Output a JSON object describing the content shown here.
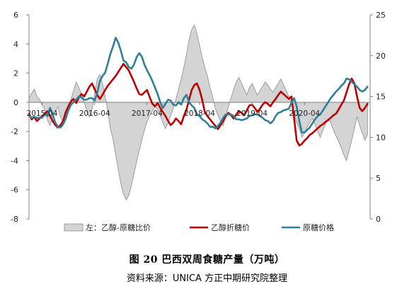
{
  "chart_data": {
    "type": "line",
    "title": "",
    "xlabel": "",
    "ylabel_left": "",
    "ylabel_right": "",
    "left_axis": {
      "min": -8,
      "max": 6,
      "step": 2,
      "ticks": [
        "-8",
        "-6",
        "-4",
        "-2",
        "0",
        "2",
        "4",
        "6"
      ]
    },
    "right_axis": {
      "min": 0,
      "max": 25,
      "step": 5,
      "ticks": [
        "0",
        "5",
        "10",
        "15",
        "20",
        "25"
      ]
    },
    "x_range": [
      2015.0,
      2021.5
    ],
    "x_ticks": [
      {
        "x": 2015.25,
        "label": "2015-04"
      },
      {
        "x": 2016.25,
        "label": "2016-04"
      },
      {
        "x": 2017.25,
        "label": "2017-04"
      },
      {
        "x": 2018.25,
        "label": "2018-04"
      },
      {
        "x": 2019.25,
        "label": "2019-04"
      },
      {
        "x": 2020.25,
        "label": "2020-04"
      }
    ],
    "legend": {
      "placement": "bottom",
      "entries": [
        "左：乙醇-原糖比价",
        "乙醇折糖价",
        "原糖价格"
      ]
    },
    "colors": {
      "area_fill": "#d4d4d4",
      "area_stroke": "#8c8c8c",
      "ethanol": "#c00000",
      "raw_sugar": "#2f7f99"
    },
    "series": [
      {
        "name": "左：乙醇-原糖比价",
        "axis": "left",
        "style": "area",
        "x": [
          2015.0,
          2015.05,
          2015.1,
          2015.15,
          2015.2,
          2015.25,
          2015.3,
          2015.35,
          2015.4,
          2015.45,
          2015.5,
          2015.55,
          2015.6,
          2015.65,
          2015.7,
          2015.75,
          2015.8,
          2015.85,
          2015.9,
          2015.95,
          2016.0,
          2016.05,
          2016.1,
          2016.15,
          2016.2,
          2016.25,
          2016.3,
          2016.35,
          2016.4,
          2016.45,
          2016.5,
          2016.55,
          2016.6,
          2016.65,
          2016.7,
          2016.75,
          2016.8,
          2016.85,
          2016.9,
          2016.95,
          2017.0,
          2017.05,
          2017.1,
          2017.15,
          2017.2,
          2017.25,
          2017.3,
          2017.35,
          2017.4,
          2017.45,
          2017.5,
          2017.55,
          2017.6,
          2017.65,
          2017.7,
          2017.75,
          2017.8,
          2017.85,
          2017.9,
          2017.95,
          2018.0,
          2018.05,
          2018.1,
          2018.15,
          2018.2,
          2018.25,
          2018.3,
          2018.35,
          2018.4,
          2018.45,
          2018.5,
          2018.55,
          2018.6,
          2018.65,
          2018.7,
          2018.75,
          2018.8,
          2018.85,
          2018.9,
          2018.95,
          2019.0,
          2019.05,
          2019.1,
          2019.15,
          2019.2,
          2019.25,
          2019.3,
          2019.35,
          2019.4,
          2019.45,
          2019.5,
          2019.55,
          2019.6,
          2019.65,
          2019.7,
          2019.75,
          2019.8,
          2019.85,
          2019.9,
          2019.95,
          2020.0,
          2020.05,
          2020.1,
          2020.15,
          2020.2,
          2020.25,
          2020.3,
          2020.35,
          2020.4,
          2020.45,
          2020.5,
          2020.55,
          2020.6,
          2020.65,
          2020.7,
          2020.75,
          2020.8,
          2020.85,
          2020.9,
          2020.95,
          2021.0,
          2021.05,
          2021.1,
          2021.15,
          2021.2,
          2021.25,
          2021.3,
          2021.35,
          2021.4,
          2021.45
        ],
        "y": [
          0.3,
          0.6,
          0.9,
          0.4,
          0.2,
          -0.2,
          -0.5,
          -1.2,
          -1.6,
          -1.0,
          -0.6,
          -0.3,
          -1.0,
          -1.4,
          -0.8,
          -0.4,
          0.2,
          0.8,
          1.4,
          1.0,
          0.6,
          0.0,
          -0.6,
          -1.0,
          -0.5,
          0.6,
          1.6,
          1.9,
          1.3,
          0.4,
          -0.6,
          -1.8,
          -2.5,
          -3.6,
          -4.6,
          -5.6,
          -6.3,
          -6.7,
          -6.4,
          -5.7,
          -4.9,
          -4.1,
          -3.3,
          -2.6,
          -1.9,
          -1.3,
          -0.9,
          -0.6,
          -0.3,
          -0.5,
          -0.9,
          -1.4,
          -1.8,
          -1.4,
          -0.9,
          -0.4,
          0.2,
          0.9,
          1.6,
          2.4,
          3.3,
          4.3,
          5.0,
          5.3,
          4.7,
          3.9,
          3.1,
          2.4,
          1.8,
          1.0,
          0.4,
          -0.4,
          -0.9,
          -1.3,
          -1.6,
          -0.9,
          -0.3,
          0.3,
          0.9,
          1.4,
          1.7,
          1.3,
          0.9,
          0.5,
          1.0,
          1.3,
          0.9,
          0.5,
          0.8,
          1.1,
          1.4,
          1.2,
          0.9,
          0.7,
          1.0,
          1.3,
          1.6,
          1.2,
          0.8,
          0.4,
          0.0,
          -0.7,
          -1.4,
          -1.8,
          -2.4,
          -2.1,
          -1.7,
          -1.4,
          -1.1,
          -1.5,
          -2.0,
          -2.4,
          -1.9,
          -1.5,
          -1.1,
          -1.4,
          -1.9,
          -2.3,
          -2.7,
          -3.1,
          -3.6,
          -4.0,
          -3.3,
          -2.6,
          -1.8,
          -1.0,
          -1.6,
          -2.1,
          -2.6,
          -2.2
        ]
      },
      {
        "name": "乙醇折糖价",
        "axis": "right",
        "style": "line",
        "x": [
          2015.0,
          2015.05,
          2015.1,
          2015.15,
          2015.2,
          2015.25,
          2015.3,
          2015.35,
          2015.4,
          2015.45,
          2015.5,
          2015.55,
          2015.6,
          2015.65,
          2015.7,
          2015.75,
          2015.8,
          2015.85,
          2015.9,
          2015.95,
          2016.0,
          2016.05,
          2016.1,
          2016.15,
          2016.2,
          2016.25,
          2016.3,
          2016.35,
          2016.4,
          2016.45,
          2016.5,
          2016.55,
          2016.6,
          2016.65,
          2016.7,
          2016.75,
          2016.8,
          2016.85,
          2016.9,
          2016.95,
          2017.0,
          2017.05,
          2017.1,
          2017.15,
          2017.2,
          2017.25,
          2017.3,
          2017.35,
          2017.4,
          2017.45,
          2017.5,
          2017.55,
          2017.6,
          2017.65,
          2017.7,
          2017.75,
          2017.8,
          2017.85,
          2017.9,
          2017.95,
          2018.0,
          2018.05,
          2018.1,
          2018.15,
          2018.2,
          2018.25,
          2018.3,
          2018.35,
          2018.4,
          2018.45,
          2018.5,
          2018.55,
          2018.6,
          2018.65,
          2018.7,
          2018.75,
          2018.8,
          2018.85,
          2018.9,
          2018.95,
          2019.0,
          2019.05,
          2019.1,
          2019.15,
          2019.2,
          2019.25,
          2019.3,
          2019.35,
          2019.4,
          2019.45,
          2019.5,
          2019.55,
          2019.6,
          2019.65,
          2019.7,
          2019.75,
          2019.8,
          2019.85,
          2019.9,
          2019.95,
          2020.0,
          2020.05,
          2020.1,
          2020.15,
          2020.2,
          2020.25,
          2020.3,
          2020.35,
          2020.4,
          2020.45,
          2020.5,
          2020.55,
          2020.6,
          2020.65,
          2020.7,
          2020.75,
          2020.8,
          2020.85,
          2020.9,
          2020.95,
          2021.0,
          2021.05,
          2021.1,
          2021.15,
          2021.2,
          2021.25,
          2021.3,
          2021.35,
          2021.4,
          2021.45
        ],
        "y": [
          12.9,
          12.2,
          12.5,
          12.0,
          12.3,
          12.6,
          12.9,
          13.2,
          12.6,
          12.0,
          11.5,
          11.2,
          11.5,
          12.0,
          13.1,
          13.8,
          14.4,
          14.7,
          14.2,
          14.9,
          15.3,
          15.0,
          15.6,
          16.2,
          16.6,
          15.9,
          15.2,
          14.7,
          15.2,
          15.8,
          16.3,
          16.7,
          17.1,
          17.5,
          18.0,
          18.5,
          19.0,
          18.6,
          18.2,
          17.5,
          16.8,
          16.0,
          15.3,
          15.2,
          15.5,
          15.8,
          14.9,
          14.1,
          13.8,
          14.2,
          13.6,
          13.1,
          12.6,
          12.0,
          11.5,
          11.8,
          12.3,
          12.0,
          11.6,
          12.6,
          13.4,
          14.6,
          15.8,
          16.4,
          16.6,
          15.8,
          14.6,
          13.1,
          12.6,
          12.2,
          11.8,
          11.4,
          11.0,
          11.5,
          12.0,
          12.6,
          13.0,
          12.7,
          12.3,
          12.8,
          13.2,
          13.0,
          12.7,
          13.3,
          13.9,
          14.0,
          13.6,
          13.1,
          13.5,
          14.0,
          14.3,
          14.1,
          13.8,
          14.3,
          14.7,
          15.2,
          15.6,
          15.3,
          15.0,
          14.7,
          15.0,
          12.4,
          9.6,
          9.0,
          9.2,
          9.6,
          9.9,
          10.3,
          10.5,
          10.8,
          11.1,
          11.4,
          11.6,
          11.9,
          12.1,
          12.4,
          12.7,
          12.9,
          13.4,
          14.0,
          14.5,
          15.5,
          16.5,
          17.2,
          16.6,
          15.0,
          13.6,
          13.2,
          13.6,
          14.1
        ]
      },
      {
        "name": "原糖价格",
        "axis": "right",
        "style": "line",
        "x": [
          2015.0,
          2015.05,
          2015.1,
          2015.15,
          2015.2,
          2015.25,
          2015.3,
          2015.35,
          2015.4,
          2015.45,
          2015.5,
          2015.55,
          2015.6,
          2015.65,
          2015.7,
          2015.75,
          2015.8,
          2015.85,
          2015.9,
          2015.95,
          2016.0,
          2016.05,
          2016.1,
          2016.15,
          2016.2,
          2016.25,
          2016.3,
          2016.35,
          2016.4,
          2016.45,
          2016.5,
          2016.55,
          2016.6,
          2016.65,
          2016.7,
          2016.75,
          2016.8,
          2016.85,
          2016.9,
          2016.95,
          2017.0,
          2017.05,
          2017.1,
          2017.15,
          2017.2,
          2017.25,
          2017.3,
          2017.35,
          2017.4,
          2017.45,
          2017.5,
          2017.55,
          2017.6,
          2017.65,
          2017.7,
          2017.75,
          2017.8,
          2017.85,
          2017.9,
          2017.95,
          2018.0,
          2018.05,
          2018.1,
          2018.15,
          2018.2,
          2018.25,
          2018.3,
          2018.35,
          2018.4,
          2018.45,
          2018.5,
          2018.55,
          2018.6,
          2018.65,
          2018.7,
          2018.75,
          2018.8,
          2018.85,
          2018.9,
          2018.95,
          2019.0,
          2019.05,
          2019.1,
          2019.15,
          2019.2,
          2019.25,
          2019.3,
          2019.35,
          2019.4,
          2019.45,
          2019.5,
          2019.55,
          2019.6,
          2019.65,
          2019.7,
          2019.75,
          2019.8,
          2019.85,
          2019.9,
          2019.95,
          2020.0,
          2020.05,
          2020.1,
          2020.15,
          2020.2,
          2020.25,
          2020.3,
          2020.35,
          2020.4,
          2020.45,
          2020.5,
          2020.55,
          2020.6,
          2020.65,
          2020.7,
          2020.75,
          2020.8,
          2020.85,
          2020.9,
          2020.95,
          2021.0,
          2021.05,
          2021.1,
          2021.15,
          2021.2,
          2021.25,
          2021.3,
          2021.35,
          2021.4,
          2021.45
        ],
        "y": [
          12.7,
          12.4,
          12.5,
          12.4,
          12.4,
          12.4,
          12.8,
          12.6,
          13.6,
          12.8,
          11.8,
          11.3,
          11.2,
          11.6,
          12.3,
          13.3,
          14.0,
          14.3,
          14.6,
          15.0,
          14.9,
          14.6,
          14.6,
          14.8,
          14.8,
          14.5,
          15.4,
          16.9,
          17.5,
          17.9,
          19.0,
          20.2,
          21.1,
          22.2,
          21.6,
          20.6,
          19.4,
          19.2,
          18.6,
          18.4,
          18.9,
          19.8,
          20.3,
          19.9,
          18.9,
          18.2,
          17.6,
          16.9,
          16.1,
          15.3,
          14.3,
          13.6,
          14.1,
          14.6,
          14.5,
          14.0,
          13.9,
          14.3,
          14.0,
          14.8,
          15.2,
          14.3,
          13.9,
          13.6,
          12.8,
          12.6,
          12.2,
          12.0,
          11.7,
          11.3,
          11.3,
          11.1,
          11.4,
          11.8,
          12.4,
          12.8,
          12.8,
          12.8,
          12.6,
          12.2,
          12.2,
          12.1,
          12.2,
          12.3,
          12.6,
          12.7,
          12.8,
          12.8,
          12.6,
          12.4,
          12.1,
          12.0,
          11.7,
          12.0,
          12.6,
          13.0,
          13.1,
          13.3,
          13.4,
          13.5,
          14.2,
          14.8,
          13.8,
          12.0,
          10.6,
          10.6,
          10.9,
          11.2,
          11.7,
          12.2,
          12.6,
          12.8,
          13.3,
          13.8,
          14.3,
          14.8,
          15.2,
          15.6,
          15.9,
          16.3,
          16.6,
          17.2,
          17.1,
          16.8,
          16.5,
          16.2,
          15.8,
          15.6,
          15.8,
          16.2
        ]
      }
    ]
  },
  "caption": {
    "title": "图 20  巴西双周食糖产量（万吨）",
    "source": "资料来源：UNICA   方正中期研究院整理"
  }
}
